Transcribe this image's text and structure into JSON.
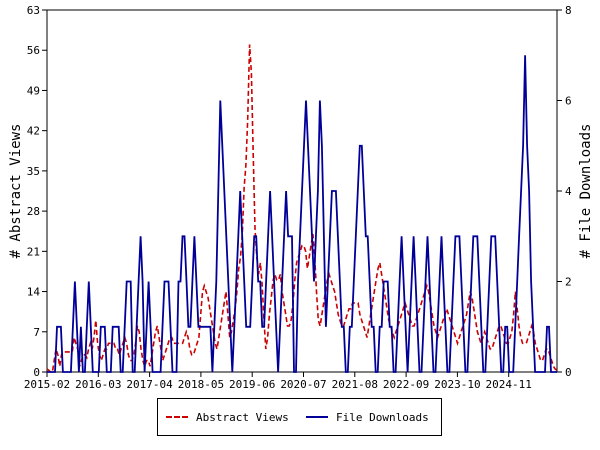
{
  "chart_data": {
    "type": "line",
    "x_tick_labels": [
      "2015-02",
      "2016-03",
      "2017-04",
      "2018-05",
      "2019-06",
      "2020-07",
      "2021-08",
      "2022-09",
      "2023-10",
      "2024-11"
    ],
    "y_left": {
      "label": "# Abstract Views",
      "ticks": [
        0,
        7,
        14,
        21,
        28,
        35,
        42,
        49,
        56,
        63
      ],
      "ylim": [
        0,
        63
      ]
    },
    "y_right": {
      "label": "# File Downloads",
      "ticks": [
        0,
        2,
        4,
        6,
        8
      ],
      "ylim": [
        0,
        8
      ]
    },
    "legend": "bottom-center",
    "grid": false,
    "series": [
      {
        "name": "Abstract Views",
        "axis": "left",
        "color": "#cc0000",
        "style": "dashed",
        "values": [
          0.5,
          0.3,
          0,
          0,
          2,
          4,
          3,
          1,
          3,
          3.5,
          3.5,
          3.5,
          3.5,
          3.5,
          3.5,
          6,
          5,
          4,
          1,
          2,
          3,
          3,
          2.5,
          4,
          5,
          4,
          6,
          9,
          5,
          3,
          2,
          3,
          4,
          4,
          5,
          5,
          5,
          5,
          4,
          4,
          3,
          4,
          5,
          6,
          5,
          3,
          2,
          2,
          3,
          5,
          8,
          7,
          4,
          2,
          1,
          2,
          2,
          1,
          3,
          5,
          7,
          8,
          6,
          4,
          2,
          3,
          4,
          5,
          6,
          6,
          5,
          5,
          5,
          5,
          5,
          5,
          6,
          7,
          6,
          4,
          3,
          3,
          4,
          5,
          6,
          10,
          14,
          15,
          14,
          13,
          11,
          9,
          7,
          5,
          4,
          6,
          8,
          10,
          12,
          14,
          10,
          6,
          7,
          9,
          11,
          14,
          18,
          20,
          24,
          32,
          36,
          44,
          57,
          52,
          38,
          25,
          20,
          17,
          19,
          15,
          9,
          4,
          6,
          10,
          13,
          16,
          17,
          16,
          16,
          17,
          14,
          12,
          10,
          8,
          8,
          9,
          12,
          16,
          19,
          20,
          21,
          22,
          22,
          21,
          18,
          20,
          22,
          24,
          20,
          14,
          9,
          8,
          10,
          12,
          14,
          16,
          17,
          16,
          15,
          14,
          12,
          10,
          9,
          8,
          8,
          9,
          10,
          11,
          11,
          12,
          12,
          12,
          12,
          10,
          9,
          8,
          7,
          6,
          8,
          10,
          12,
          14,
          16,
          18,
          19,
          17,
          15,
          13,
          11,
          9,
          8,
          7,
          6,
          7,
          8,
          9,
          10,
          11,
          12,
          11,
          10,
          9,
          8,
          8,
          9,
          10,
          11,
          12,
          13,
          14,
          15,
          14,
          12,
          10,
          8,
          7,
          6,
          7,
          8,
          9,
          10,
          11,
          10,
          9,
          8,
          7,
          6,
          5,
          6,
          7,
          8,
          9,
          10,
          12,
          14,
          13,
          11,
          9,
          7,
          6,
          5,
          6,
          7,
          6,
          5,
          4,
          4,
          5,
          6,
          7,
          8,
          8,
          7,
          6,
          5,
          5,
          6,
          7,
          10,
          14,
          11,
          8,
          6,
          5,
          5,
          5,
          6,
          7,
          8,
          7,
          5,
          4,
          3,
          2,
          2,
          3,
          4,
          4,
          3,
          2,
          1,
          0.5,
          0.3
        ]
      },
      {
        "name": "File Downloads",
        "axis": "right",
        "color": "#000099",
        "style": "solid",
        "values": [
          0,
          0,
          0,
          0,
          0,
          1,
          1,
          1,
          0,
          0,
          0,
          0,
          0,
          1,
          2,
          1,
          0,
          1,
          0,
          0,
          1,
          2,
          1,
          0,
          0,
          0,
          0,
          1,
          1,
          1,
          0,
          0,
          0,
          1,
          1,
          1,
          1,
          0,
          0,
          1,
          2,
          2,
          2,
          0,
          0,
          1,
          2,
          3,
          2,
          0,
          1,
          2,
          1,
          0,
          0,
          0,
          0,
          0,
          1,
          2,
          2,
          2,
          1,
          0,
          0,
          0,
          2,
          2,
          3,
          3,
          2,
          1,
          1,
          2,
          3,
          2,
          1,
          1,
          1,
          1,
          1,
          1,
          1,
          0,
          1,
          2,
          4,
          6,
          5,
          4,
          3,
          2,
          1,
          0,
          1,
          2,
          3,
          4,
          3,
          2,
          1,
          1,
          1,
          2,
          3,
          3,
          2,
          2,
          1,
          1,
          2,
          3,
          4,
          3,
          2,
          1,
          0,
          1,
          2,
          3,
          4,
          3,
          3,
          3,
          0,
          0,
          2,
          3,
          4,
          5,
          6,
          5,
          4,
          3,
          2,
          3,
          4,
          6,
          5,
          3,
          1,
          2,
          3,
          4,
          4,
          4,
          3,
          2,
          1,
          1,
          0,
          0,
          1,
          1,
          2,
          3,
          4,
          5,
          5,
          4,
          3,
          3,
          2,
          1,
          1,
          0,
          0,
          1,
          1,
          2,
          2,
          2,
          1,
          1,
          0,
          0,
          1,
          2,
          3,
          2,
          1,
          0,
          1,
          2,
          3,
          2,
          1,
          0,
          0,
          1,
          2,
          3,
          2,
          1,
          0,
          0,
          1,
          2,
          3,
          2,
          1,
          0,
          0,
          1,
          2,
          3,
          3,
          3,
          2,
          1,
          0,
          0,
          1,
          2,
          3,
          3,
          3,
          2,
          1,
          0,
          0,
          1,
          2,
          3,
          3,
          3,
          2,
          1,
          0,
          0,
          1,
          1,
          0,
          0,
          0,
          1,
          2,
          3,
          4,
          5,
          7,
          5,
          4,
          2,
          1,
          0,
          0,
          0,
          0,
          0,
          0,
          1,
          1,
          0,
          0,
          0,
          0
        ]
      }
    ]
  }
}
